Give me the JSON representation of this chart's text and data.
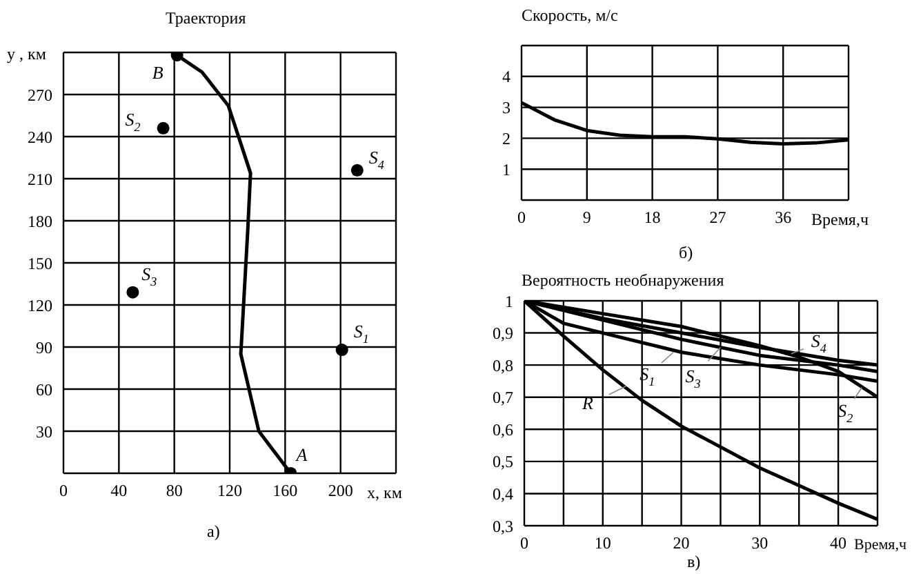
{
  "chart_data": [
    {
      "type": "line",
      "title": "Траектория",
      "xlabel": "x, км",
      "ylabel": "y , км",
      "xlim": [
        0,
        240
      ],
      "ylim": [
        0,
        300
      ],
      "xticks": [
        0,
        40,
        80,
        120,
        160,
        200,
        {
          "value": 240,
          "label": null
        }
      ],
      "yticks": [
        {
          "value": 0,
          "label": null
        },
        30,
        60,
        90,
        120,
        150,
        180,
        210,
        240,
        270,
        {
          "value": 300,
          "label": null
        }
      ],
      "grid": true,
      "series": [
        {
          "type": "line",
          "color": "#000000",
          "marker": "none",
          "x": [
            164,
            141,
            128,
            133,
            135,
            119,
            100,
            82
          ],
          "values": [
            0,
            30,
            85,
            173,
            214,
            262,
            286,
            298
          ]
        },
        {
          "type": "scatter",
          "color": "#000000",
          "marker": "circle",
          "x": [
            201,
            72,
            50,
            212,
            164,
            82
          ],
          "values": [
            88,
            246,
            129,
            216,
            0,
            298
          ]
        }
      ],
      "annotations": [
        {
          "text": "S$_{1}$",
          "x": 201,
          "y": 88
        },
        {
          "text": "S$_{2}$",
          "x": 72,
          "y": 246
        },
        {
          "text": "S$_{3}$",
          "x": 50,
          "y": 129
        },
        {
          "text": "S$_{4}$",
          "x": 212,
          "y": 216
        },
        {
          "text": "A",
          "x": 164,
          "y": 0
        },
        {
          "text": "B",
          "x": 82,
          "y": 298
        },
        "а)"
      ]
    },
    {
      "type": "line",
      "title": "Скорость, м/с",
      "xlabel": "Время,ч",
      "xlim": [
        0,
        45
      ],
      "ylim": [
        0,
        5
      ],
      "xticks": [
        0,
        9,
        18,
        27,
        36,
        {
          "value": 45,
          "label": null
        }
      ],
      "yticks": [
        {
          "value": 0,
          "label": null
        },
        1,
        2,
        3,
        4,
        {
          "value": 5,
          "label": null
        }
      ],
      "grid": true,
      "series": [
        {
          "type": "line",
          "color": "#000000",
          "marker": "none",
          "x": [
            0,
            4.5,
            9,
            13.5,
            18,
            22.5,
            27,
            31.5,
            36,
            40.5,
            45
          ],
          "values": [
            3.15,
            2.6,
            2.25,
            2.1,
            2.05,
            2.05,
            1.98,
            1.87,
            1.82,
            1.85,
            1.95
          ]
        }
      ],
      "annotations": [
        "б)"
      ]
    },
    {
      "type": "line",
      "title": "Вероятность необнаружения",
      "xlabel": "Время,ч",
      "xlim": [
        0,
        45
      ],
      "ylim": [
        0.3,
        1
      ],
      "xticks": [
        0,
        {
          "value": 5,
          "label": null
        },
        10,
        {
          "value": 15,
          "label": null
        },
        20,
        {
          "value": 25,
          "label": null
        },
        30,
        {
          "value": 35,
          "label": null
        },
        40,
        {
          "value": 45,
          "label": null
        }
      ],
      "yticks": [
        {
          "value": 0.3,
          "label": "0,3"
        },
        {
          "value": 0.4,
          "label": "0,4"
        },
        {
          "value": 0.5,
          "label": "0,5"
        },
        {
          "value": 0.6,
          "label": "0,6"
        },
        {
          "value": 0.7,
          "label": "0,7"
        },
        {
          "value": 0.8,
          "label": "0,8"
        },
        {
          "value": 0.9,
          "label": "0,9"
        },
        1
      ],
      "grid": true,
      "series": [
        {
          "type": "line",
          "color": "#000000",
          "marker": "none",
          "x": [
            0,
            5,
            10,
            15,
            20,
            25,
            30,
            35,
            40,
            45
          ],
          "values": [
            1,
            0.89,
            0.785,
            0.69,
            0.61,
            0.545,
            0.48,
            0.425,
            0.37,
            0.32
          ]
        },
        {
          "type": "line",
          "color": "#000000",
          "marker": "none",
          "x": [
            0,
            5,
            10,
            20,
            30,
            40,
            45
          ],
          "values": [
            1,
            0.93,
            0.9,
            0.84,
            0.8,
            0.77,
            0.75
          ]
        },
        {
          "type": "line",
          "color": "#000000",
          "marker": "none",
          "x": [
            0,
            10,
            20,
            30,
            40,
            45
          ],
          "values": [
            1,
            0.94,
            0.88,
            0.83,
            0.8,
            0.78
          ]
        },
        {
          "type": "line",
          "color": "#000000",
          "marker": "none",
          "x": [
            0,
            10,
            20,
            30,
            40,
            45
          ],
          "values": [
            1,
            0.945,
            0.9,
            0.855,
            0.815,
            0.8
          ]
        },
        {
          "type": "line",
          "color": "#000000",
          "marker": "none",
          "x": [
            0,
            10,
            20,
            30,
            35,
            40,
            45
          ],
          "values": [
            1,
            0.96,
            0.92,
            0.86,
            0.825,
            0.78,
            0.7
          ]
        }
      ],
      "annotations": [
        {
          "text": "S$_{1}$",
          "x": 19,
          "y": 0.84
        },
        {
          "text": "S$_{3}$",
          "x": 25,
          "y": 0.855
        },
        {
          "text": "S$_{4}$",
          "x": 34,
          "y": 0.835
        },
        {
          "text": "S$_{2}$",
          "x": 43,
          "y": 0.73
        },
        {
          "text": "R",
          "x": 13,
          "y": 0.735
        },
        "в)"
      ]
    }
  ]
}
